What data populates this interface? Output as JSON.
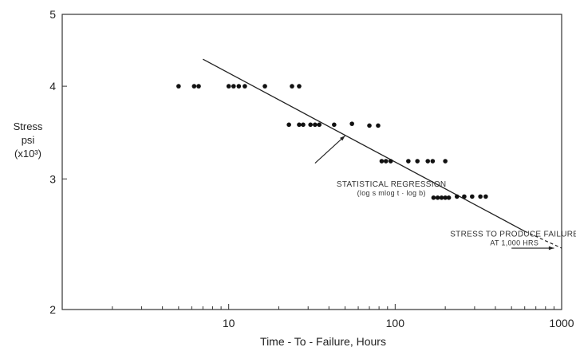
{
  "chart_data": {
    "type": "scatter",
    "xscale": "log",
    "yscale": "log",
    "xlim": [
      1,
      1000
    ],
    "ylim": [
      2,
      5
    ],
    "xticks": [
      10,
      100,
      1000
    ],
    "yticks": [
      2,
      3,
      4,
      5
    ],
    "xlabel": "Time - To - Failure, Hours",
    "ylabel": [
      "Stress",
      "psi",
      "(x10³)"
    ],
    "grid": false,
    "points": [
      {
        "x": 5,
        "y": 4.0
      },
      {
        "x": 6.2,
        "y": 4.0
      },
      {
        "x": 6.6,
        "y": 4.0
      },
      {
        "x": 10,
        "y": 4.0
      },
      {
        "x": 10.7,
        "y": 4.0
      },
      {
        "x": 11.5,
        "y": 4.0
      },
      {
        "x": 12.5,
        "y": 4.0
      },
      {
        "x": 16.5,
        "y": 4.0
      },
      {
        "x": 24,
        "y": 4.0
      },
      {
        "x": 26.5,
        "y": 4.0
      },
      {
        "x": 23,
        "y": 3.55
      },
      {
        "x": 26.5,
        "y": 3.55
      },
      {
        "x": 28,
        "y": 3.55
      },
      {
        "x": 31,
        "y": 3.55
      },
      {
        "x": 33,
        "y": 3.55
      },
      {
        "x": 35,
        "y": 3.55
      },
      {
        "x": 43,
        "y": 3.55
      },
      {
        "x": 55,
        "y": 3.56
      },
      {
        "x": 70,
        "y": 3.54
      },
      {
        "x": 79,
        "y": 3.54
      },
      {
        "x": 83,
        "y": 3.17
      },
      {
        "x": 88,
        "y": 3.17
      },
      {
        "x": 94,
        "y": 3.17
      },
      {
        "x": 120,
        "y": 3.17
      },
      {
        "x": 136,
        "y": 3.17
      },
      {
        "x": 157,
        "y": 3.17
      },
      {
        "x": 168,
        "y": 3.17
      },
      {
        "x": 200,
        "y": 3.17
      },
      {
        "x": 170,
        "y": 2.83
      },
      {
        "x": 180,
        "y": 2.83
      },
      {
        "x": 190,
        "y": 2.83
      },
      {
        "x": 200,
        "y": 2.83
      },
      {
        "x": 210,
        "y": 2.83
      },
      {
        "x": 235,
        "y": 2.84
      },
      {
        "x": 260,
        "y": 2.84
      },
      {
        "x": 290,
        "y": 2.84
      },
      {
        "x": 325,
        "y": 2.84
      },
      {
        "x": 350,
        "y": 2.84
      }
    ],
    "regression": {
      "solid_from": {
        "x": 7,
        "y": 4.35
      },
      "solid_to": {
        "x": 600,
        "y": 2.55
      },
      "dashed_to": {
        "x": 1000,
        "y": 2.42
      }
    },
    "annotations": [
      {
        "id": "regression",
        "lines": [
          "STATISTICAL REGRESSION",
          "(log s    mlog t  ·  log b)"
        ],
        "text_at": {
          "x": 95,
          "y": 2.93
        },
        "arrow_from": {
          "x": 33,
          "y": 3.15
        },
        "arrow_to": {
          "x": 50,
          "y": 3.43
        }
      },
      {
        "id": "failure",
        "lines": [
          "STRESS TO PRODUCE FAILURE",
          "AT 1,000 HRS"
        ],
        "text_at": {
          "x": 520,
          "y": 2.51
        },
        "arrow_from": {
          "x": 500,
          "y": 2.42
        },
        "arrow_to": {
          "x": 900,
          "y": 2.42
        }
      }
    ]
  }
}
